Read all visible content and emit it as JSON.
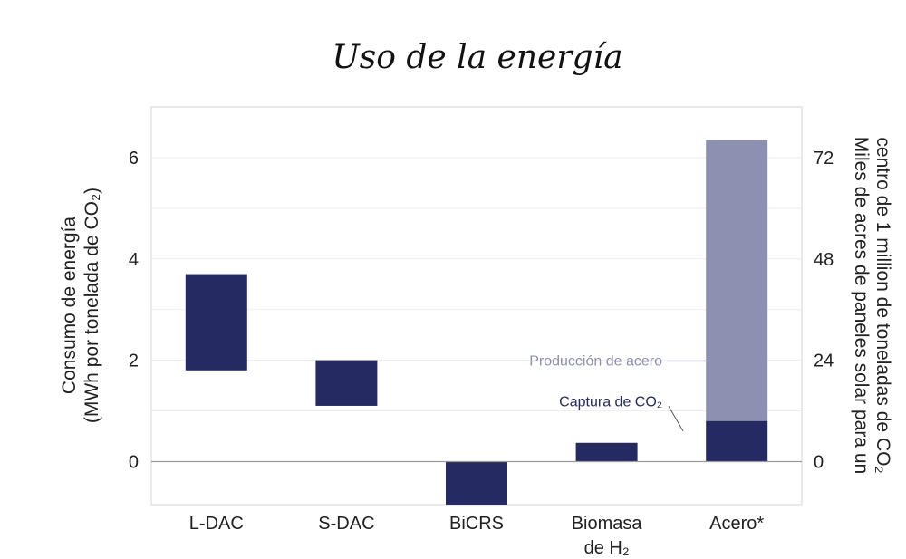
{
  "chart_data": {
    "type": "bar",
    "title": "Uso de la energía",
    "categories": [
      "L-DAC",
      "S-DAC",
      "BiCRS",
      "Biomasa de H₂",
      "Acero*"
    ],
    "category_lines": [
      [
        "L-DAC"
      ],
      [
        "S-DAC"
      ],
      [
        "BiCRS"
      ],
      [
        "Biomasa",
        "de H₂"
      ],
      [
        "Acero*"
      ]
    ],
    "ylabel_lines": [
      "Consumo de energía",
      "(MWh por tonelada de CO₂)"
    ],
    "y2label_lines": [
      "Miles de acres de paneles solar para un",
      "centro de 1 million de toneladas de CO₂"
    ],
    "ylim": [
      -0.85,
      7.0
    ],
    "yticks": [
      0,
      2,
      4,
      6
    ],
    "y2ticks": [
      0,
      24,
      48,
      72
    ],
    "y2_per_y": 12,
    "grid": true,
    "series": [
      {
        "name": "Captura de CO₂",
        "color": "#252a63",
        "ranges": [
          [
            1.8,
            3.7
          ],
          [
            1.1,
            2.0
          ],
          [
            -0.85,
            0.0
          ],
          [
            0.0,
            0.37
          ],
          [
            0.0,
            0.8
          ]
        ]
      },
      {
        "name": "Producción de acero",
        "color": "#8e90b2",
        "ranges": [
          null,
          null,
          null,
          null,
          [
            0.8,
            6.35
          ]
        ]
      }
    ]
  }
}
